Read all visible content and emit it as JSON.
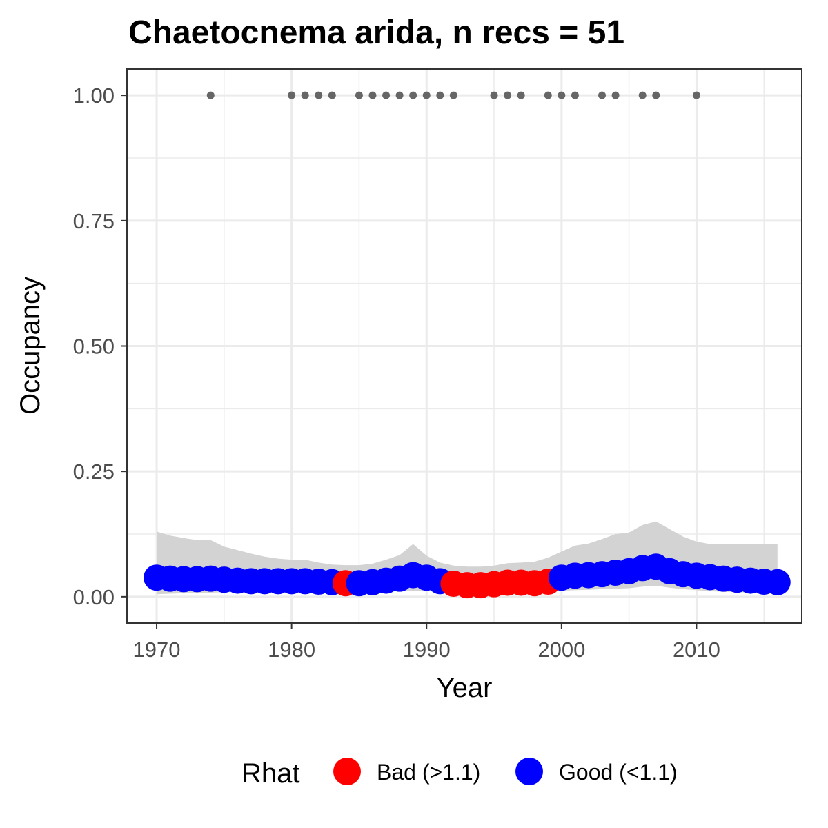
{
  "chart_data": {
    "type": "line",
    "title": "Chaetocnema arida, n recs = 51",
    "xlabel": "Year",
    "ylabel": "Occupancy",
    "xlim": [
      1967.8,
      2017.8
    ],
    "ylim": [
      -0.0525,
      1.0525
    ],
    "x_ticks": [
      1970,
      1980,
      1990,
      2000,
      2010
    ],
    "x_tick_labels": [
      "1970",
      "1980",
      "1990",
      "2000",
      "2010"
    ],
    "y_ticks": [
      0,
      0.25,
      0.5,
      0.75,
      1.0
    ],
    "y_tick_labels": [
      "0.00",
      "0.25",
      "0.50",
      "0.75",
      "1.00"
    ],
    "grid": true,
    "legend": {
      "title": "Rhat",
      "position": "bottom",
      "items": [
        {
          "label": "Bad (>1.1)",
          "color": "#ff0000"
        },
        {
          "label": "Good (<1.1)",
          "color": "#0000ff"
        }
      ]
    },
    "series": [
      {
        "name": "Occupancy estimate",
        "x": [
          1970,
          1971,
          1972,
          1973,
          1974,
          1975,
          1976,
          1977,
          1978,
          1979,
          1980,
          1981,
          1982,
          1983,
          1984,
          1985,
          1986,
          1987,
          1988,
          1989,
          1990,
          1991,
          1992,
          1993,
          1994,
          1995,
          1996,
          1997,
          1998,
          1999,
          2000,
          2001,
          2002,
          2003,
          2004,
          2005,
          2006,
          2007,
          2008,
          2009,
          2010,
          2011,
          2012,
          2013,
          2014,
          2015,
          2016
        ],
        "y": [
          0.038,
          0.036,
          0.035,
          0.035,
          0.036,
          0.034,
          0.032,
          0.031,
          0.031,
          0.031,
          0.031,
          0.031,
          0.03,
          0.029,
          0.027,
          0.027,
          0.029,
          0.032,
          0.036,
          0.043,
          0.038,
          0.031,
          0.026,
          0.023,
          0.023,
          0.025,
          0.028,
          0.028,
          0.027,
          0.03,
          0.038,
          0.042,
          0.043,
          0.045,
          0.048,
          0.051,
          0.057,
          0.06,
          0.051,
          0.045,
          0.042,
          0.039,
          0.036,
          0.034,
          0.032,
          0.03,
          0.029
        ],
        "rhat": [
          "Good",
          "Good",
          "Good",
          "Good",
          "Good",
          "Good",
          "Good",
          "Good",
          "Good",
          "Good",
          "Good",
          "Good",
          "Good",
          "Good",
          "Bad",
          "Good",
          "Good",
          "Good",
          "Good",
          "Good",
          "Good",
          "Good",
          "Bad",
          "Bad",
          "Bad",
          "Bad",
          "Bad",
          "Bad",
          "Bad",
          "Bad",
          "Good",
          "Good",
          "Good",
          "Good",
          "Good",
          "Good",
          "Good",
          "Good",
          "Good",
          "Good",
          "Good",
          "Good",
          "Good",
          "Good",
          "Good",
          "Good",
          "Good"
        ],
        "lower": [
          0.005,
          0.006,
          0.007,
          0.008,
          0.008,
          0.009,
          0.009,
          0.01,
          0.01,
          0.01,
          0.01,
          0.01,
          0.01,
          0.01,
          0.01,
          0.01,
          0.01,
          0.01,
          0.011,
          0.012,
          0.011,
          0.01,
          0.008,
          0.007,
          0.007,
          0.007,
          0.008,
          0.008,
          0.009,
          0.01,
          0.012,
          0.013,
          0.014,
          0.015,
          0.016,
          0.017,
          0.02,
          0.022,
          0.018,
          0.015,
          0.013,
          0.011,
          0.01,
          0.009,
          0.008,
          0.007,
          0.006
        ],
        "upper": [
          0.13,
          0.122,
          0.117,
          0.113,
          0.113,
          0.1,
          0.093,
          0.086,
          0.08,
          0.076,
          0.074,
          0.074,
          0.068,
          0.064,
          0.063,
          0.063,
          0.066,
          0.074,
          0.083,
          0.105,
          0.082,
          0.068,
          0.062,
          0.06,
          0.06,
          0.062,
          0.067,
          0.068,
          0.07,
          0.078,
          0.09,
          0.102,
          0.106,
          0.115,
          0.125,
          0.128,
          0.143,
          0.15,
          0.135,
          0.12,
          0.11,
          0.105,
          0.105,
          0.105,
          0.105,
          0.105,
          0.105
        ]
      },
      {
        "name": "Observed records",
        "x": [
          1974,
          1980,
          1981,
          1982,
          1983,
          1985,
          1986,
          1987,
          1988,
          1989,
          1990,
          1991,
          1992,
          1995,
          1996,
          1997,
          1999,
          2000,
          2001,
          2003,
          2004,
          2006,
          2007,
          2010
        ],
        "y": [
          1,
          1,
          1,
          1,
          1,
          1,
          1,
          1,
          1,
          1,
          1,
          1,
          1,
          1,
          1,
          1,
          1,
          1,
          1,
          1,
          1,
          1,
          1,
          1
        ]
      }
    ],
    "colors": {
      "bad": "#ff0000",
      "good": "#0000ff",
      "ribbon": "#d3d3d3",
      "records": "#666666",
      "grid": "#ebebeb",
      "panel_border": "#333333"
    }
  }
}
